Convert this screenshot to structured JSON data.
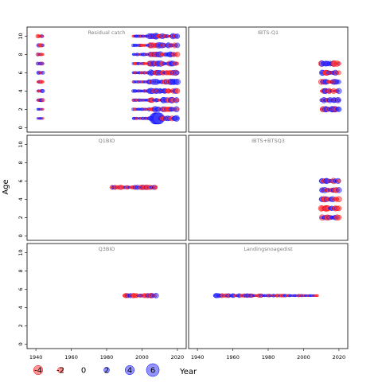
{
  "chart_data": {
    "type": "scatter",
    "subtype": "bubble-residual-panels",
    "ylabel": "Age",
    "xlabel": "Year",
    "xlim": [
      1935,
      2025
    ],
    "ylim": [
      -0.5,
      11
    ],
    "x_ticks": [
      1940,
      1960,
      1980,
      2000,
      2020
    ],
    "y_ticks": [
      0,
      2,
      4,
      6,
      8,
      10
    ],
    "colors": {
      "positive": "#0000ff",
      "negative": "#ff0000",
      "positive_fill": "rgba(60,60,255,0.55)",
      "negative_fill": "rgba(255,60,60,0.55)"
    },
    "legend": {
      "placement": "bottom-left",
      "values": [
        -4,
        -2,
        0,
        2,
        4,
        6
      ],
      "labels": [
        "-4",
        "-2",
        "0",
        "2",
        "4",
        "6"
      ]
    },
    "panels": [
      {
        "title": "Residual catch",
        "blocks": [
          {
            "x_from": 1941,
            "x_to": 1944,
            "ages": [
              1,
              2,
              3,
              4,
              5,
              6,
              7,
              8,
              9,
              10
            ],
            "pattern": "early"
          },
          {
            "x_from": 1995,
            "x_to": 2020,
            "ages": [
              1,
              2,
              3,
              4,
              5,
              6,
              7,
              8,
              9,
              10
            ],
            "pattern": "late-catch"
          }
        ]
      },
      {
        "title": "IBTS-Q1",
        "blocks": [
          {
            "x_from": 2010,
            "x_to": 2020,
            "ages": [
              2,
              3,
              4,
              5,
              6,
              7
            ],
            "pattern": "survey"
          }
        ]
      },
      {
        "title": "Q1BIO",
        "blocks": [
          {
            "x_from": 1983,
            "x_to": 2008,
            "ages": [
              5.3
            ],
            "pattern": "bio"
          }
        ]
      },
      {
        "title": "IBTS+BTSQ3",
        "blocks": [
          {
            "x_from": 2010,
            "x_to": 2020,
            "ages": [
              2,
              3,
              4,
              5,
              6
            ],
            "pattern": "survey"
          }
        ]
      },
      {
        "title": "Q3BIO",
        "blocks": [
          {
            "x_from": 1990,
            "x_to": 2008,
            "ages": [
              5.3
            ],
            "pattern": "bio"
          }
        ]
      },
      {
        "title": "Landingsnoagedist",
        "blocks": [
          {
            "x_from": 1950,
            "x_to": 2008,
            "ages": [
              5.3
            ],
            "pattern": "landings"
          }
        ]
      }
    ]
  }
}
